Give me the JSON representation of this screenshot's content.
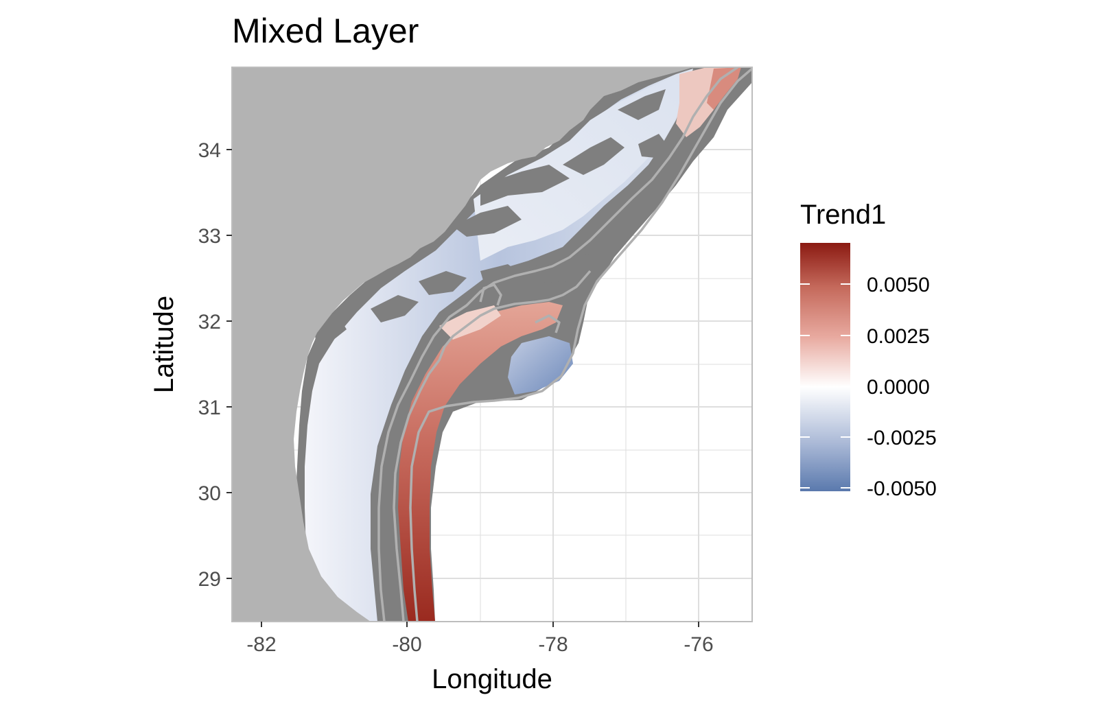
{
  "map": {
    "title": "Mixed Layer",
    "x_label": "Longitude",
    "y_label": "Latitude",
    "x_ticks": [
      "-82",
      "-80",
      "-78",
      "-76"
    ],
    "y_ticks": [
      "34",
      "33",
      "32",
      "31",
      "30",
      "29"
    ],
    "x_range": [
      -82.4,
      -75.3
    ],
    "y_range": [
      28.5,
      34.95
    ],
    "colors": {
      "land": "#b3b3b3",
      "masked": "#7f7f7f",
      "grid": "#dedede",
      "panel_border": "#bdbdbd",
      "contour": "#b0b0b0",
      "positive_high": "#8b1a12",
      "negative_low": "#5a79ad"
    }
  },
  "legend": {
    "title": "Trend1",
    "labels": [
      "0.0050",
      "0.0025",
      "0.0000",
      "-0.0025",
      "-0.0050"
    ],
    "values": [
      0.005,
      0.0025,
      0.0,
      -0.0025,
      -0.005
    ],
    "range": [
      -0.0055,
      0.0075
    ],
    "colors": [
      "#5a79ad",
      "#a9b8d6",
      "#ffffff",
      "#e8aaa0",
      "#c56a5c",
      "#8b1a12"
    ]
  }
}
